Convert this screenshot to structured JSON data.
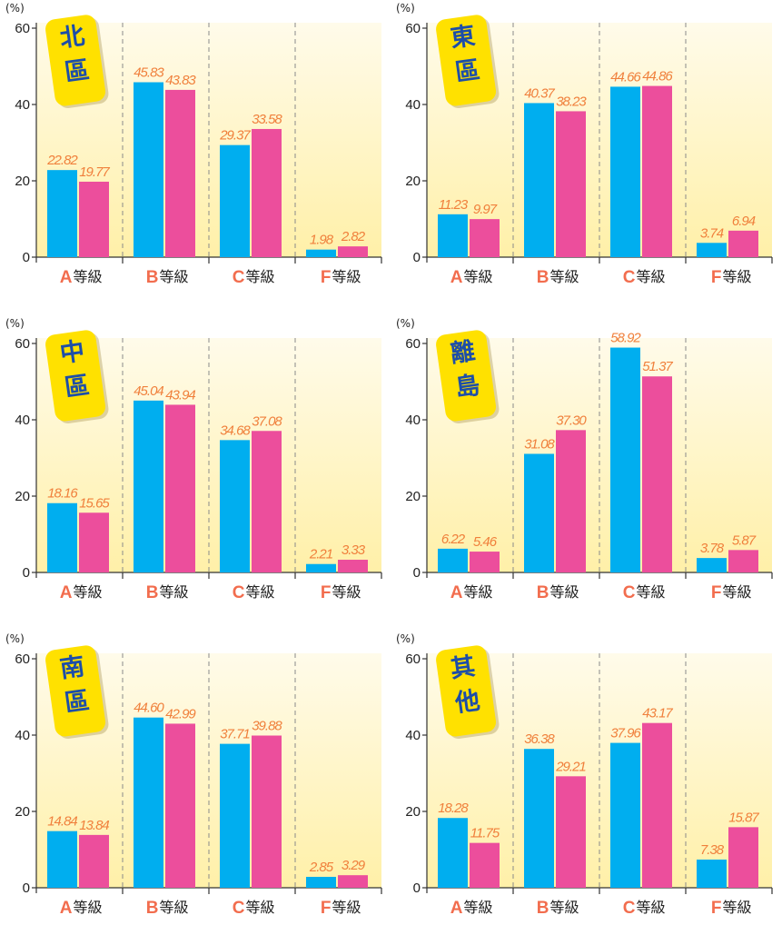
{
  "colors": {
    "series_1": "#00aeef",
    "series_2": "#ec4e9c",
    "value_label": "#f0803c",
    "category_letter": "#f26d4e",
    "badge_fill": "#ffe100",
    "badge_text": "#1d4ea8",
    "panel_gradient_top": "#fffbea",
    "panel_gradient_bottom": "#fff0a8"
  },
  "chart_data": [
    {
      "type": "bar",
      "title": "北區",
      "unit": "(%)",
      "categories": [
        "A",
        "B",
        "C",
        "F"
      ],
      "category_suffix": "等級",
      "ylim": [
        0,
        60
      ],
      "yticks": [
        "0",
        "20",
        "40",
        "60"
      ],
      "series": [
        {
          "values": [
            22.82,
            45.83,
            29.37,
            1.98
          ],
          "labels": [
            "22.82",
            "45.83",
            "29.37",
            "1.98"
          ]
        },
        {
          "values": [
            19.77,
            43.83,
            33.58,
            2.82
          ],
          "labels": [
            "19.77",
            "43.83",
            "33.58",
            "2.82"
          ]
        }
      ]
    },
    {
      "type": "bar",
      "title": "東區",
      "unit": "(%)",
      "categories": [
        "A",
        "B",
        "C",
        "F"
      ],
      "category_suffix": "等級",
      "ylim": [
        0,
        60
      ],
      "yticks": [
        "0",
        "20",
        "40",
        "60"
      ],
      "series": [
        {
          "values": [
            11.23,
            40.37,
            44.66,
            3.74
          ],
          "labels": [
            "11.23",
            "40.37",
            "44.66",
            "3.74"
          ]
        },
        {
          "values": [
            9.97,
            38.23,
            44.86,
            6.94
          ],
          "labels": [
            "9.97",
            "38.23",
            "44.86",
            "6.94"
          ]
        }
      ]
    },
    {
      "type": "bar",
      "title": "中區",
      "unit": "(%)",
      "categories": [
        "A",
        "B",
        "C",
        "F"
      ],
      "category_suffix": "等級",
      "ylim": [
        0,
        60
      ],
      "yticks": [
        "0",
        "20",
        "40",
        "60"
      ],
      "series": [
        {
          "values": [
            18.16,
            45.04,
            34.68,
            2.21
          ],
          "labels": [
            "18.16",
            "45.04",
            "34.68",
            "2.21"
          ]
        },
        {
          "values": [
            15.65,
            43.94,
            37.08,
            3.33
          ],
          "labels": [
            "15.65",
            "43.94",
            "37.08",
            "3.33"
          ]
        }
      ]
    },
    {
      "type": "bar",
      "title": "離島",
      "unit": "(%)",
      "categories": [
        "A",
        "B",
        "C",
        "F"
      ],
      "category_suffix": "等級",
      "ylim": [
        0,
        60
      ],
      "yticks": [
        "0",
        "20",
        "40",
        "60"
      ],
      "series": [
        {
          "values": [
            6.22,
            31.08,
            58.92,
            3.78
          ],
          "labels": [
            "6.22",
            "31.08",
            "58.92",
            "3.78"
          ]
        },
        {
          "values": [
            5.46,
            37.3,
            51.37,
            5.87
          ],
          "labels": [
            "5.46",
            "37.30",
            "51.37",
            "5.87"
          ]
        }
      ]
    },
    {
      "type": "bar",
      "title": "南區",
      "unit": "(%)",
      "categories": [
        "A",
        "B",
        "C",
        "F"
      ],
      "category_suffix": "等級",
      "ylim": [
        0,
        60
      ],
      "yticks": [
        "0",
        "20",
        "40",
        "60"
      ],
      "series": [
        {
          "values": [
            14.84,
            44.6,
            37.71,
            2.85
          ],
          "labels": [
            "14.84",
            "44.60",
            "37.71",
            "2.85"
          ]
        },
        {
          "values": [
            13.84,
            42.99,
            39.88,
            3.29
          ],
          "labels": [
            "13.84",
            "42.99",
            "39.88",
            "3.29"
          ]
        }
      ]
    },
    {
      "type": "bar",
      "title": "其他",
      "unit": "(%)",
      "categories": [
        "A",
        "B",
        "C",
        "F"
      ],
      "category_suffix": "等級",
      "ylim": [
        0,
        60
      ],
      "yticks": [
        "0",
        "20",
        "40",
        "60"
      ],
      "series": [
        {
          "values": [
            18.28,
            36.38,
            37.96,
            7.38
          ],
          "labels": [
            "18.28",
            "36.38",
            "37.96",
            "7.38"
          ]
        },
        {
          "values": [
            11.75,
            29.21,
            43.17,
            15.87
          ],
          "labels": [
            "11.75",
            "29.21",
            "43.17",
            "15.87"
          ]
        }
      ]
    }
  ]
}
